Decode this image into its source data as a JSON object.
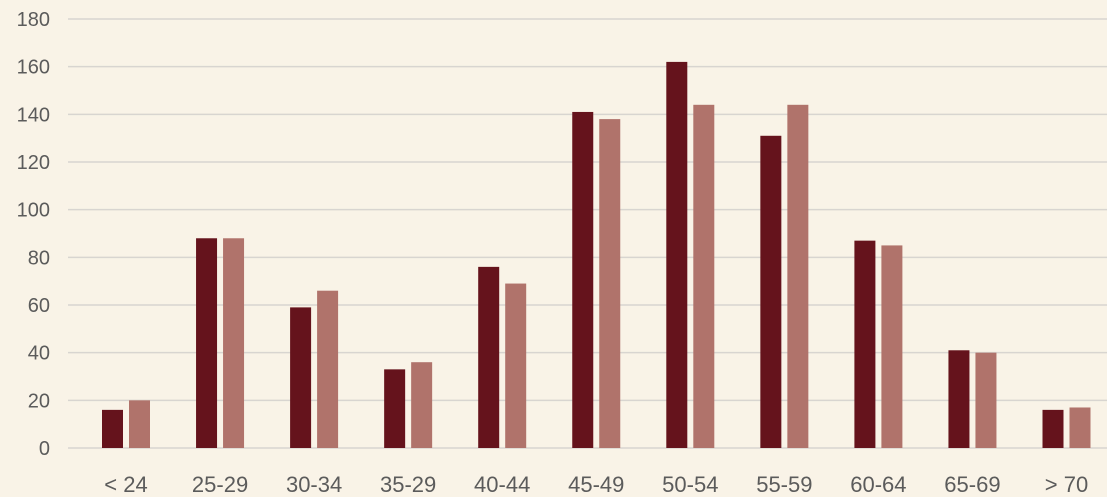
{
  "chart_data": {
    "type": "bar",
    "title": "",
    "xlabel": "",
    "ylabel": "",
    "ylim": [
      0,
      180
    ],
    "yticks": [
      0,
      20,
      40,
      60,
      80,
      100,
      120,
      140,
      160,
      180
    ],
    "grid": true,
    "legend": "none",
    "categories": [
      "< 24",
      "25-29",
      "30-34",
      "35-29",
      "40-44",
      "45-49",
      "50-54",
      "55-59",
      "60-64",
      "65-69",
      "> 70"
    ],
    "series": [
      {
        "color": "#65131c",
        "values": [
          16,
          88,
          59,
          33,
          76,
          141,
          162,
          131,
          87,
          41,
          16
        ]
      },
      {
        "color": "#b0736b",
        "values": [
          20,
          88,
          66,
          36,
          69,
          138,
          144,
          144,
          85,
          40,
          17
        ]
      }
    ]
  },
  "colors": {
    "background": "#f9f3e7",
    "grid": "#d8d5d0",
    "text": "#5b5b5b"
  }
}
